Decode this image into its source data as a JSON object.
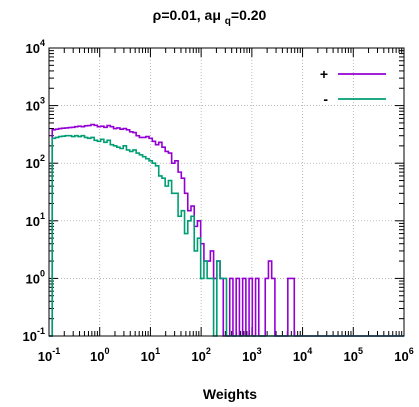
{
  "chart_data": {
    "type": "line",
    "title": {
      "part1": "ρ=0.01, aμ ",
      "sub": "q",
      "part2": "=0.20"
    },
    "xlabel": "Weights",
    "ylabel": "",
    "x_scale": "log",
    "y_scale": "log",
    "xlim": [
      0.1,
      1000000
    ],
    "ylim": [
      0.1,
      10000
    ],
    "grid": true,
    "legend_position": "top-right",
    "x_ticks": [
      {
        "base": "10",
        "exp": "-1"
      },
      {
        "base": "10",
        "exp": "0"
      },
      {
        "base": "10",
        "exp": "1"
      },
      {
        "base": "10",
        "exp": "2"
      },
      {
        "base": "10",
        "exp": "3"
      },
      {
        "base": "10",
        "exp": "4"
      },
      {
        "base": "10",
        "exp": "5"
      },
      {
        "base": "10",
        "exp": "6"
      }
    ],
    "y_ticks": [
      {
        "base": "10",
        "exp": "-1"
      },
      {
        "base": "10",
        "exp": "0"
      },
      {
        "base": "10",
        "exp": "1"
      },
      {
        "base": "10",
        "exp": "2"
      },
      {
        "base": "10",
        "exp": "3"
      },
      {
        "base": "10",
        "exp": "4"
      }
    ],
    "series": [
      {
        "name": "+",
        "color": "#9400d3",
        "values": [
          0.1,
          380,
          390,
          400,
          405,
          410,
          415,
          420,
          430,
          440,
          430,
          445,
          450,
          470,
          455,
          430,
          440,
          420,
          450,
          430,
          400,
          410,
          390,
          400,
          380,
          350,
          340,
          300,
          280,
          280,
          290,
          270,
          240,
          210,
          230,
          190,
          160,
          150,
          100,
          110,
          70,
          55,
          30,
          15,
          18,
          8,
          10,
          4,
          2,
          2,
          3,
          1,
          2,
          1,
          0.1,
          0.1,
          1,
          0.1,
          1,
          0.1,
          1,
          0.1,
          1,
          0.1,
          1,
          0.1,
          0.1,
          1,
          2,
          1,
          0.1,
          0.1,
          0.1,
          0.1,
          1,
          1,
          0.1,
          0.1,
          0.1,
          0.1,
          0.1,
          0.1,
          0.1,
          0.1,
          0.1,
          0.1,
          0.1,
          0.1,
          0.1,
          0.1,
          0.1,
          0.1,
          0.1,
          0.1,
          0.1,
          0.1,
          0.1,
          0.1,
          0.1,
          0.1,
          0.1,
          0.1,
          0.1,
          0.1,
          0.1,
          0.1,
          0.1,
          0.1,
          0.1,
          0.1
        ]
      },
      {
        "name": "-",
        "color": "#009e73",
        "values": [
          0.1,
          270,
          280,
          290,
          295,
          300,
          300,
          290,
          300,
          290,
          300,
          280,
          270,
          280,
          250,
          240,
          260,
          230,
          250,
          210,
          200,
          190,
          180,
          200,
          170,
          160,
          170,
          150,
          140,
          130,
          120,
          110,
          100,
          90,
          60,
          55,
          40,
          50,
          30,
          30,
          12,
          15,
          6,
          10,
          12,
          3,
          5,
          1,
          2,
          1,
          1,
          0.1,
          2,
          1,
          1,
          0.1,
          0.1,
          0.1,
          0.1,
          0.1,
          0.1,
          0.1,
          0.1,
          0.1,
          0.1,
          0.1,
          0.1,
          0.1,
          0.1,
          0.1,
          0.1,
          0.1,
          0.1,
          0.1,
          0.1,
          0.1,
          0.1,
          0.1,
          0.1,
          0.1,
          0.1,
          0.1,
          0.1,
          0.1,
          0.1,
          0.1,
          0.1,
          0.1,
          0.1,
          0.1,
          0.1,
          0.1,
          0.1,
          0.1,
          0.1,
          0.1,
          0.1,
          0.1,
          0.1,
          0.1,
          0.1,
          0.1,
          0.1,
          0.1,
          0.1,
          0.1,
          0.1,
          0.1,
          0.1,
          0.1
        ]
      }
    ]
  }
}
